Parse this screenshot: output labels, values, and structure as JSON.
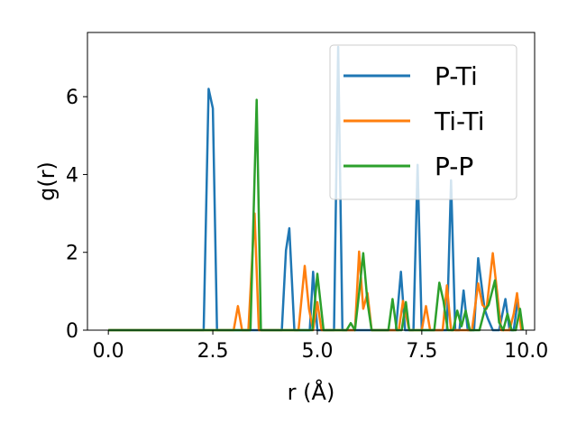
{
  "chart_data": {
    "type": "line",
    "xlabel": "r (Å)",
    "ylabel": "g(r)",
    "xlim": [
      -0.5,
      10.2
    ],
    "ylim": [
      0,
      7.65
    ],
    "x_ticks": [
      0.0,
      2.5,
      5.0,
      7.5,
      10.0
    ],
    "x_tick_labels": [
      "0.0",
      "2.5",
      "5.0",
      "7.5",
      "10.0"
    ],
    "y_ticks": [
      0,
      2,
      4,
      6
    ],
    "y_tick_labels": [
      "0",
      "2",
      "4",
      "6"
    ],
    "grid": false,
    "legend_position": "top-right",
    "series": [
      {
        "name": "P-Ti",
        "color": "#1f77b4",
        "points": [
          [
            0.0,
            0
          ],
          [
            2.28,
            0
          ],
          [
            2.4,
            6.2
          ],
          [
            2.5,
            5.7
          ],
          [
            2.6,
            0
          ],
          [
            4.15,
            0
          ],
          [
            4.25,
            2.05
          ],
          [
            4.33,
            2.62
          ],
          [
            4.45,
            0
          ],
          [
            4.82,
            0
          ],
          [
            4.9,
            1.5
          ],
          [
            5.0,
            0
          ],
          [
            5.4,
            0
          ],
          [
            5.5,
            7.28
          ],
          [
            5.6,
            0
          ],
          [
            6.88,
            0
          ],
          [
            7.0,
            1.5
          ],
          [
            7.1,
            0
          ],
          [
            7.3,
            0
          ],
          [
            7.4,
            4.25
          ],
          [
            7.5,
            0
          ],
          [
            8.1,
            0
          ],
          [
            8.2,
            3.85
          ],
          [
            8.3,
            0
          ],
          [
            8.4,
            0
          ],
          [
            8.5,
            1.02
          ],
          [
            8.6,
            0
          ],
          [
            8.75,
            0
          ],
          [
            8.85,
            1.85
          ],
          [
            9.0,
            0.55
          ],
          [
            9.08,
            0.3
          ],
          [
            9.2,
            0
          ],
          [
            9.35,
            0
          ],
          [
            9.5,
            0.8
          ],
          [
            9.6,
            0
          ],
          [
            9.7,
            0
          ],
          [
            9.8,
            0.8
          ]
        ]
      },
      {
        "name": "Ti-Ti",
        "color": "#ff7f0e",
        "points": [
          [
            0.0,
            0
          ],
          [
            3.0,
            0
          ],
          [
            3.1,
            0.62
          ],
          [
            3.2,
            0
          ],
          [
            3.35,
            0
          ],
          [
            3.5,
            3.0
          ],
          [
            3.6,
            0
          ],
          [
            4.55,
            0
          ],
          [
            4.7,
            1.65
          ],
          [
            4.8,
            0.55
          ],
          [
            4.9,
            0
          ],
          [
            5.0,
            0.72
          ],
          [
            5.1,
            0
          ],
          [
            5.9,
            0
          ],
          [
            6.0,
            2.02
          ],
          [
            6.1,
            0.55
          ],
          [
            6.2,
            0.95
          ],
          [
            6.3,
            0
          ],
          [
            6.95,
            0
          ],
          [
            7.05,
            0.75
          ],
          [
            7.2,
            0
          ],
          [
            7.5,
            0
          ],
          [
            7.6,
            0.62
          ],
          [
            7.7,
            0
          ],
          [
            8.0,
            0
          ],
          [
            8.1,
            1.15
          ],
          [
            8.2,
            0
          ],
          [
            8.7,
            0
          ],
          [
            8.85,
            1.2
          ],
          [
            8.95,
            0.65
          ],
          [
            9.05,
            0.55
          ],
          [
            9.2,
            1.98
          ],
          [
            9.3,
            1.0
          ],
          [
            9.4,
            0
          ],
          [
            9.6,
            0
          ],
          [
            9.7,
            0.42
          ],
          [
            9.78,
            0.95
          ],
          [
            9.88,
            0
          ]
        ]
      },
      {
        "name": "P-P",
        "color": "#2ca02c",
        "points": [
          [
            0.0,
            0
          ],
          [
            3.4,
            0
          ],
          [
            3.55,
            5.92
          ],
          [
            3.65,
            0
          ],
          [
            4.88,
            0
          ],
          [
            5.0,
            1.45
          ],
          [
            5.15,
            0
          ],
          [
            5.7,
            0
          ],
          [
            5.8,
            0.18
          ],
          [
            5.9,
            0
          ],
          [
            6.0,
            0.95
          ],
          [
            6.1,
            1.98
          ],
          [
            6.2,
            0.72
          ],
          [
            6.3,
            0
          ],
          [
            6.7,
            0
          ],
          [
            6.8,
            0.8
          ],
          [
            6.9,
            0
          ],
          [
            7.02,
            0
          ],
          [
            7.12,
            0.72
          ],
          [
            7.2,
            0
          ],
          [
            7.8,
            0
          ],
          [
            7.92,
            1.22
          ],
          [
            8.02,
            0.75
          ],
          [
            8.12,
            0
          ],
          [
            8.25,
            0
          ],
          [
            8.35,
            0.5
          ],
          [
            8.45,
            0.1
          ],
          [
            8.55,
            0.5
          ],
          [
            8.65,
            0
          ],
          [
            8.88,
            0
          ],
          [
            9.0,
            0.5
          ],
          [
            9.1,
            0.65
          ],
          [
            9.25,
            1.28
          ],
          [
            9.35,
            0.2
          ],
          [
            9.45,
            0
          ],
          [
            9.55,
            0.42
          ],
          [
            9.65,
            0
          ],
          [
            9.75,
            0
          ],
          [
            9.85,
            0.55
          ],
          [
            9.92,
            0
          ]
        ]
      }
    ]
  }
}
